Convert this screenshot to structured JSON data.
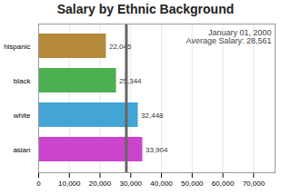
{
  "chart_data": {
    "type": "bar",
    "orientation": "horizontal",
    "title": "Salary by Ethnic Background",
    "categories": [
      "asian",
      "white",
      "black",
      "hispanic"
    ],
    "values": [
      33904,
      32448,
      25344,
      22045
    ],
    "colors": [
      "#cc44cc",
      "#42a5d5",
      "#4caf50",
      "#b5893a"
    ],
    "data_labels": true,
    "value_labels": [
      "33,904",
      "32,448",
      "25,344",
      "22,045"
    ],
    "avg_salary": 28561,
    "annotations": [
      "January 01, 2000",
      "Average Salary: 28,561"
    ],
    "xlim": [
      0,
      77000
    ],
    "xticks": [
      0,
      {
        "value": 10000,
        "label": "10,000"
      },
      {
        "value": 20000,
        "label": "20,000"
      },
      {
        "value": 30000,
        "label": "30,000"
      },
      {
        "value": 40000,
        "label": "40,000"
      },
      {
        "value": 50000,
        "label": "50,000"
      },
      {
        "value": 60000,
        "label": "60,000"
      },
      {
        "value": 70000,
        "label": "70,000"
      }
    ],
    "grid": true
  }
}
